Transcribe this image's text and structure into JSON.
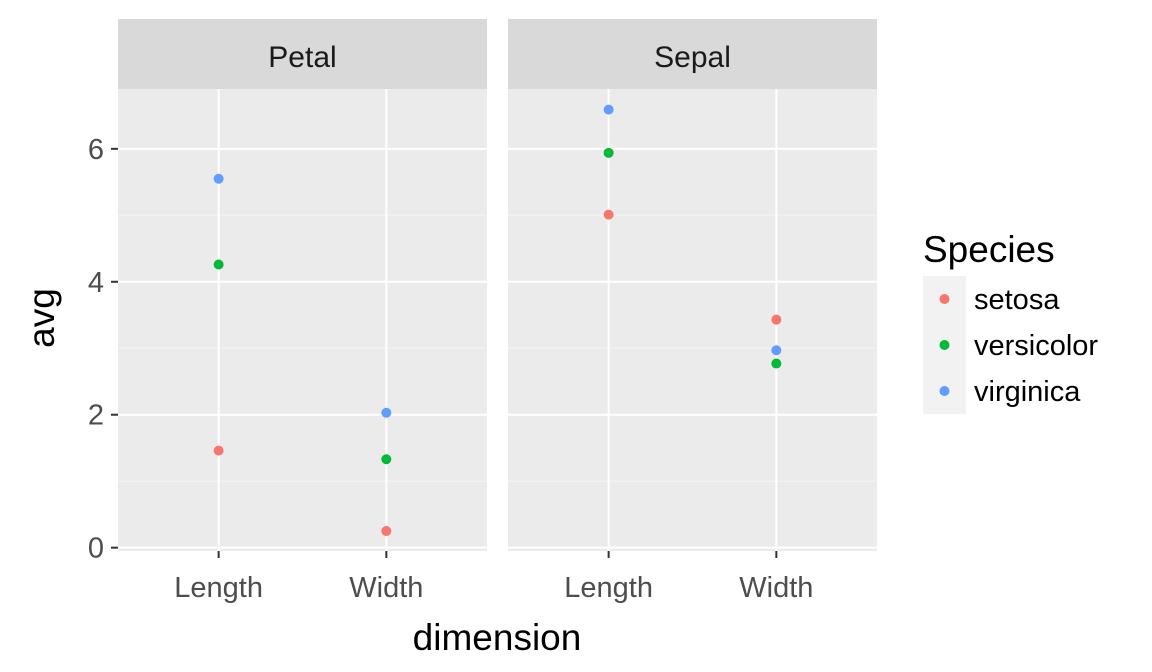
{
  "chart_data": {
    "type": "scatter",
    "facets": [
      "Petal",
      "Sepal"
    ],
    "categories": [
      "Length",
      "Width"
    ],
    "xlabel": "dimension",
    "ylabel": "avg",
    "ylim": [
      -0.05,
      6.9
    ],
    "yticks": [
      "0",
      "2",
      "4",
      "6"
    ],
    "grid": true,
    "legend": {
      "title": "Species",
      "position": "right"
    },
    "series": [
      {
        "name": "setosa",
        "color": "#F8766D",
        "values": {
          "Petal": [
            1.46,
            0.25
          ],
          "Sepal": [
            5.01,
            3.43
          ]
        }
      },
      {
        "name": "versicolor",
        "color": "#00BA38",
        "values": {
          "Petal": [
            4.26,
            1.33
          ],
          "Sepal": [
            5.94,
            2.77
          ]
        }
      },
      {
        "name": "virginica",
        "color": "#619CFF",
        "values": {
          "Petal": [
            5.55,
            2.03
          ],
          "Sepal": [
            6.59,
            2.97
          ]
        }
      }
    ]
  }
}
